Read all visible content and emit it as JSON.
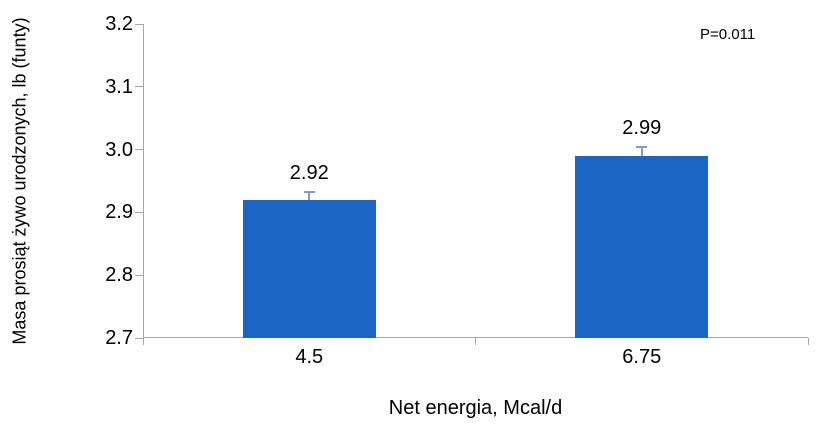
{
  "chart_data": {
    "type": "bar",
    "title": "",
    "categories": [
      "4.5",
      "6.75"
    ],
    "values": [
      2.92,
      2.99
    ],
    "value_labels": [
      "2.92",
      "2.99"
    ],
    "errors": [
      0.013,
      0.014
    ],
    "xlabel": "Net energia, Mcal/d",
    "ylabel": "Masa prosiąt żywo urodzonych, lb (funty)",
    "ylim": [
      2.7,
      3.2
    ],
    "ytick_step": 0.1,
    "ytick_labels": [
      "2.7",
      "2.8",
      "2.9",
      "3.0",
      "3.1",
      "3.2"
    ],
    "annotation": "P=0.011",
    "grid": false,
    "legend": "none",
    "colors": {
      "bar": "#1B66C4",
      "error_bar": "#7E9DC8",
      "axis": "#A6A6A6",
      "text": "#000000",
      "background": "#FFFFFF"
    }
  }
}
